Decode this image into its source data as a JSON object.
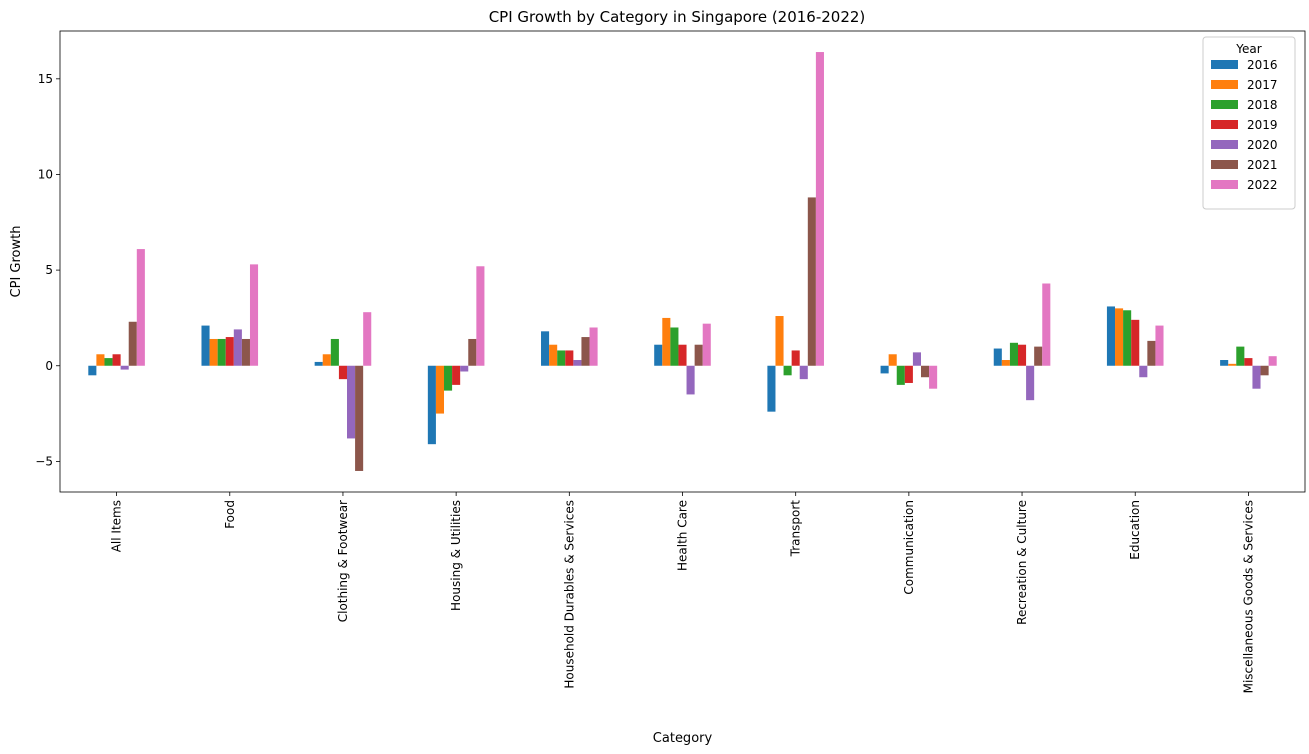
{
  "chart_data": {
    "type": "bar",
    "title": "CPI Growth by Category in Singapore (2016-2022)",
    "xlabel": "Category",
    "ylabel": "CPI Growth",
    "ylim": [
      -6.6,
      17.5
    ],
    "yticks": [
      -5,
      0,
      5,
      10,
      15
    ],
    "ytick_labels": [
      "−5",
      "0",
      "5",
      "10",
      "15"
    ],
    "grid": false,
    "legend": {
      "title": "Year",
      "position": "top-right"
    },
    "categories": [
      "All Items",
      "Food",
      "Clothing & Footwear",
      "Housing & Utilities",
      "Household Durables & Services",
      "Health Care",
      "Transport",
      "Communication",
      "Recreation & Culture",
      "Education",
      "Miscellaneous Goods & Services"
    ],
    "series": [
      {
        "name": "2016",
        "color": "#1f77b4",
        "values": [
          -0.5,
          2.1,
          0.2,
          -4.1,
          1.8,
          1.1,
          -2.4,
          -0.4,
          0.9,
          3.1,
          0.3
        ]
      },
      {
        "name": "2017",
        "color": "#ff7f0e",
        "values": [
          0.6,
          1.4,
          0.6,
          -2.5,
          1.1,
          2.5,
          2.6,
          0.6,
          0.3,
          3.0,
          0.1
        ]
      },
      {
        "name": "2018",
        "color": "#2ca02c",
        "values": [
          0.4,
          1.4,
          1.4,
          -1.3,
          0.8,
          2.0,
          -0.5,
          -1.0,
          1.2,
          2.9,
          1.0
        ]
      },
      {
        "name": "2019",
        "color": "#d62728",
        "values": [
          0.6,
          1.5,
          -0.7,
          -1.0,
          0.8,
          1.1,
          0.8,
          -0.9,
          1.1,
          2.4,
          0.4
        ]
      },
      {
        "name": "2020",
        "color": "#9467bd",
        "values": [
          -0.2,
          1.9,
          -3.8,
          -0.3,
          0.3,
          -1.5,
          -0.7,
          0.7,
          -1.8,
          -0.6,
          -1.2
        ]
      },
      {
        "name": "2021",
        "color": "#8c564b",
        "values": [
          2.3,
          1.4,
          -5.5,
          1.4,
          1.5,
          1.1,
          8.8,
          -0.6,
          1.0,
          1.3,
          -0.5
        ]
      },
      {
        "name": "2022",
        "color": "#e377c2",
        "values": [
          6.1,
          5.3,
          2.8,
          5.2,
          2.0,
          2.2,
          16.4,
          -1.2,
          4.3,
          2.1,
          0.5
        ]
      }
    ]
  }
}
